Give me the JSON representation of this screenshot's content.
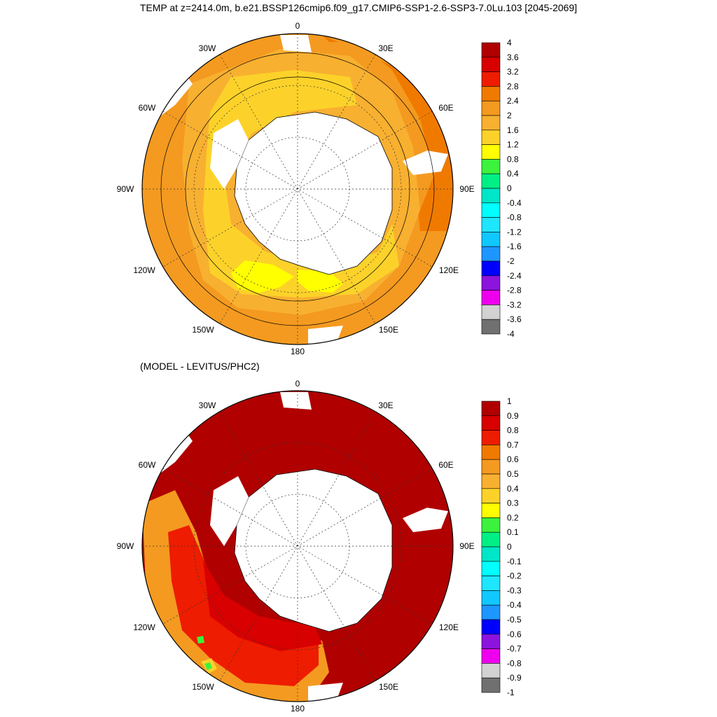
{
  "title": "TEMP at z=2414.0m, b.e21.BSSP126cmip6.f09_g17.CMIP6-SSP1-2.6-SSP3-7.0Lu.103 [2045-2069]",
  "panel2_title": "(MODEL - LEVITUS/PHC2)",
  "longitude_labels": {
    "top": "0",
    "bottom": "180",
    "w30": "30W",
    "e30": "30E",
    "w60": "60W",
    "e60": "60E",
    "w90": "90W",
    "e90": "90E",
    "w120": "120W",
    "e120": "120E",
    "w150": "150W",
    "e150": "150E"
  },
  "colorbar1": {
    "labels": [
      "4",
      "3.6",
      "3.2",
      "2.8",
      "2.4",
      "2",
      "1.6",
      "1.2",
      "0.8",
      "0.4",
      "0",
      "-0.4",
      "-0.8",
      "-1.2",
      "-1.6",
      "-2",
      "-2.4",
      "-2.8",
      "-3.2",
      "-3.6",
      "-4"
    ]
  },
  "colorbar2": {
    "labels": [
      "1",
      "0.9",
      "0.8",
      "0.7",
      "0.6",
      "0.5",
      "0.4",
      "0.3",
      "0.2",
      "0.1",
      "0",
      "-0.1",
      "-0.2",
      "-0.3",
      "-0.4",
      "-0.5",
      "-0.6",
      "-0.7",
      "-0.8",
      "-0.9",
      "-1"
    ]
  },
  "colormap": [
    "#b00000",
    "#d80000",
    "#ee1c00",
    "#f07a00",
    "#f49a20",
    "#f8b030",
    "#fcd22a",
    "#ffff00",
    "#3cf23c",
    "#00f086",
    "#00e6c8",
    "#00ffff",
    "#1ee6ff",
    "#10c8ff",
    "#1e96ff",
    "#0000ff",
    "#8c14dc",
    "#ee00ee",
    "#d2d2d2",
    "#707070"
  ],
  "chart_data": [
    {
      "type": "heatmap",
      "map": "south-polar-stereographic",
      "variable": "TEMP at z=2414.0m",
      "levels": [
        -4,
        -3.6,
        -3.2,
        -2.8,
        -2.4,
        -2,
        -1.6,
        -1.2,
        -0.8,
        -0.4,
        0,
        0.4,
        0.8,
        1.2,
        1.6,
        2,
        2.4,
        2.8,
        3.2,
        3.6,
        4
      ],
      "colorbar_range": [
        -4,
        4
      ]
    },
    {
      "type": "heatmap",
      "map": "south-polar-stereographic",
      "variable": "(MODEL - LEVITUS/PHC2)",
      "levels": [
        -1,
        -0.9,
        -0.8,
        -0.7,
        -0.6,
        -0.5,
        -0.4,
        -0.3,
        -0.2,
        -0.1,
        0,
        0.1,
        0.2,
        0.3,
        0.4,
        0.5,
        0.6,
        0.7,
        0.8,
        0.9,
        1
      ],
      "colorbar_range": [
        -1,
        1
      ]
    }
  ]
}
